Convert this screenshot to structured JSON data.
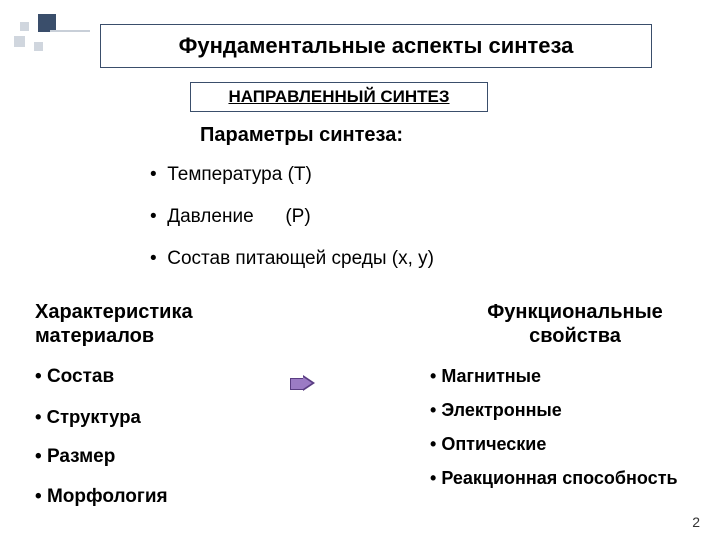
{
  "title": "Фундаментальные аспекты синтеза",
  "subtitle": "НАПРАВЛЕННЫЙ СИНТЕЗ",
  "params_heading": "Параметры синтеза:",
  "params": [
    {
      "label": "Температура",
      "var": "(Т)"
    },
    {
      "label": "Давление",
      "var": "(Р)"
    },
    {
      "label": "Состав питающей среды",
      "var": "(x, y)"
    }
  ],
  "left": {
    "heading_l1": "Характеристика",
    "heading_l2": "материалов",
    "items": [
      "Состав",
      "Структура",
      "Размер",
      "Морфология"
    ]
  },
  "right": {
    "heading_l1": "Функциональные",
    "heading_l2": "свойства",
    "items": [
      "Магнитные",
      "Электронные",
      "Оптические",
      "Реакционная способность"
    ]
  },
  "page_number": "2",
  "colors": {
    "border": "#3a4e6b",
    "deco_light": "#d0d6de",
    "arrow_fill": "#9b7bc4",
    "arrow_border": "#5a3d82",
    "background": "#ffffff"
  }
}
